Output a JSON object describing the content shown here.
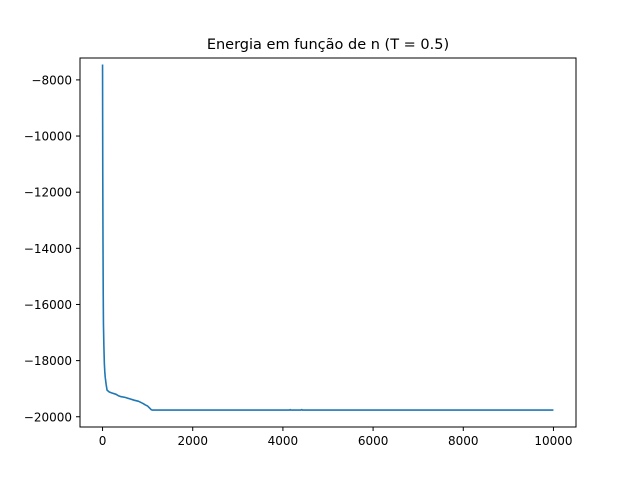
{
  "chart_data": {
    "type": "line",
    "title": "Energia em função de n (T = 0.5)",
    "xlabel": "",
    "ylabel": "",
    "xlim": [
      -500,
      10500
    ],
    "ylim": [
      -20365,
      -7220
    ],
    "xticks": [
      0,
      2000,
      4000,
      6000,
      8000,
      10000
    ],
    "xtick_labels": [
      "0",
      "2000",
      "4000",
      "6000",
      "8000",
      "10000"
    ],
    "yticks": [
      -20000,
      -18000,
      -16000,
      -14000,
      -12000,
      -10000,
      -8000
    ],
    "ytick_labels": [
      "−20000",
      "−18000",
      "−16000",
      "−14000",
      "−12000",
      "−10000",
      "−8000"
    ],
    "grid": false,
    "line_color": "#1f77b4",
    "series": [
      {
        "x": [
          0,
          2,
          5,
          10,
          15,
          20,
          30,
          40,
          50,
          60,
          80,
          100,
          150,
          200,
          300,
          350,
          400,
          500,
          600,
          700,
          800,
          900,
          950,
          1000,
          1050,
          1080,
          1100,
          1200,
          2000,
          3000,
          4000,
          4150,
          4160,
          4170,
          4400,
          4420,
          4430,
          5000,
          6000,
          7000,
          8000,
          9000,
          10000
        ],
        "y": [
          -7450,
          -9300,
          -11400,
          -13800,
          -15600,
          -16700,
          -17500,
          -18100,
          -18400,
          -18600,
          -18850,
          -19050,
          -19120,
          -19150,
          -19200,
          -19250,
          -19280,
          -19310,
          -19360,
          -19410,
          -19450,
          -19530,
          -19580,
          -19620,
          -19700,
          -19750,
          -19760,
          -19760,
          -19760,
          -19760,
          -19760,
          -19760,
          -19745,
          -19760,
          -19760,
          -19745,
          -19760,
          -19760,
          -19760,
          -19760,
          -19760,
          -19760,
          -19760
        ]
      }
    ]
  }
}
